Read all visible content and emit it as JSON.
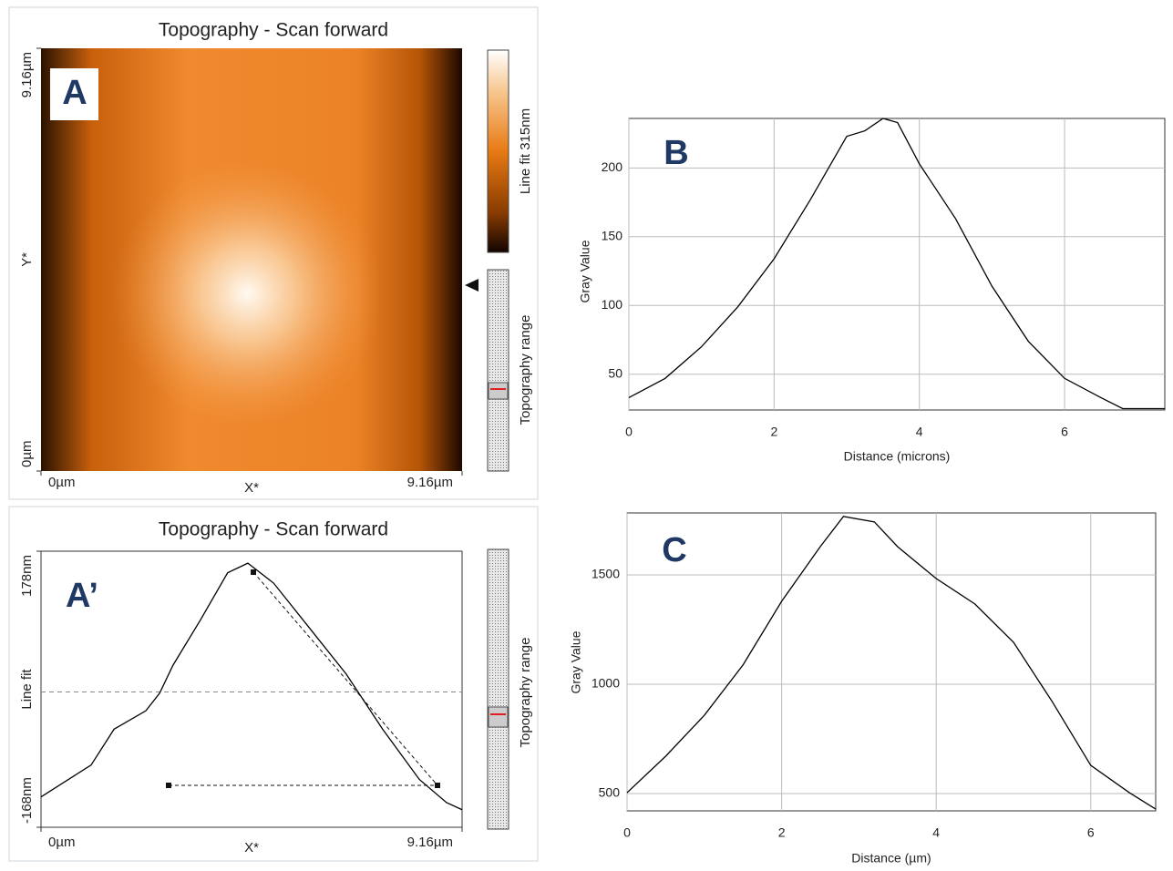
{
  "chart_data": [
    {
      "type": "image",
      "title": "Topography - Scan forward",
      "panel_label": "A",
      "xlabel": "X*",
      "ylabel": "Y*",
      "xlim": [
        0,
        9.16
      ],
      "ylim": [
        0,
        9.16
      ],
      "xticks": [
        {
          "value": 0,
          "label": "0µm"
        },
        {
          "value": 9.16,
          "label": "9.16µm"
        }
      ],
      "yticks": [
        {
          "value": 0,
          "label": "0µm"
        },
        {
          "value": 9.16,
          "label": "9.16µm"
        }
      ],
      "colorbar_label": "Line fit 315nm",
      "range_label": "Topography range"
    },
    {
      "type": "line",
      "title": "Topography - Scan forward",
      "panel_label": "A’",
      "xlabel": "X*",
      "ylabel": "Line fit",
      "xlim": [
        0,
        9.16
      ],
      "ylim": [
        -168,
        178
      ],
      "xticks": [
        {
          "value": 0,
          "label": "0µm"
        },
        {
          "value": 9.16,
          "label": "9.16µm"
        }
      ],
      "yticks": [
        {
          "value": -168,
          "label": "-168nm"
        },
        {
          "value": 178,
          "label": "178nm"
        }
      ],
      "range_label": "Topography range",
      "grid": false,
      "x": [
        0,
        1.09,
        1.59,
        2.28,
        2.58,
        2.87,
        3.47,
        4.06,
        4.5,
        5.06,
        5.85,
        6.64,
        7.43,
        8.23,
        8.82,
        9.16
      ],
      "series": [
        {
          "color": "#000000",
          "values": [
            -130,
            -90,
            -45,
            -22,
            0,
            35,
            92,
            151,
            163,
            138,
            81,
            24,
            -45,
            -108,
            -137,
            -146
          ]
        }
      ]
    },
    {
      "type": "line",
      "panel_label": "B",
      "xlabel": "Distance (microns)",
      "ylabel": "Gray Value",
      "xlim": [
        0,
        7.38
      ],
      "ylim": [
        24,
        236
      ],
      "xticks": [
        0,
        2,
        4,
        6
      ],
      "yticks": [
        50,
        100,
        150,
        200
      ],
      "grid": true,
      "x": [
        0,
        0.5,
        1,
        1.5,
        2,
        2.5,
        3,
        3.25,
        3.5,
        3.7,
        4,
        4.5,
        5,
        5.5,
        6,
        6.5,
        6.8,
        7.38
      ],
      "series": [
        {
          "color": "#000000",
          "values": [
            33,
            47,
            70,
            99,
            134,
            177,
            223,
            227,
            236,
            233,
            203,
            163,
            114,
            74,
            47,
            33,
            25,
            25
          ]
        }
      ]
    },
    {
      "type": "line",
      "panel_label": "C",
      "xlabel": "Distance (µm)",
      "ylabel": "Gray Value",
      "xlim": [
        0,
        6.84
      ],
      "ylim": [
        421,
        1783
      ],
      "xticks": [
        0,
        2,
        4,
        6
      ],
      "yticks": [
        500,
        1000,
        1500
      ],
      "grid": true,
      "x": [
        0,
        0.5,
        1,
        1.5,
        2,
        2.5,
        2.8,
        3.2,
        3.5,
        4,
        4.5,
        5,
        5.5,
        6,
        6.5,
        6.84
      ],
      "series": [
        {
          "color": "#000000",
          "values": [
            504,
            671,
            858,
            1088,
            1379,
            1629,
            1767,
            1742,
            1629,
            1483,
            1367,
            1192,
            921,
            629,
            504,
            429
          ]
        }
      ]
    }
  ]
}
